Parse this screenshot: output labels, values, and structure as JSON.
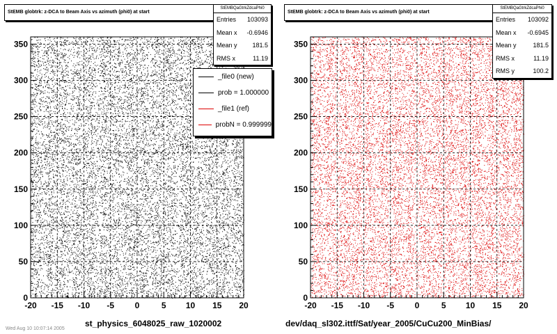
{
  "colors": {
    "new": "#000000",
    "ref": "#dd0000"
  },
  "panels": [
    {
      "title": "StEMB globtrk: z-DCA to Beam Axis vs azimuth (phi0) at start",
      "stats_name": "StEMBQaGtrkZdcaPhi0",
      "stats": [
        {
          "label": "Entries",
          "value": "103093"
        },
        {
          "label": "Mean x",
          "value": "-0.6946"
        },
        {
          "label": "Mean y",
          "value": "181.5"
        },
        {
          "label": "RMS x",
          "value": "11.19"
        }
      ],
      "x_title": "st_physics_6048025_raw_1020002"
    },
    {
      "title": "StEMB globtrk: z-DCA to Beam Axis vs azimuth (phi0) at start",
      "stats_name": "StEMBQaGtrkZdcaPhi0",
      "stats": [
        {
          "label": "Entries",
          "value": "103092"
        },
        {
          "label": "Mean x",
          "value": "-0.6945"
        },
        {
          "label": "Mean y",
          "value": "181.5"
        },
        {
          "label": "RMS x",
          "value": "11.19"
        },
        {
          "label": "RMS y",
          "value": "100.2"
        }
      ],
      "x_title": "dev/daq_sl302.ittf/Sat/year_2005/CuCu200_MinBias/"
    }
  ],
  "legend": [
    {
      "label": "_file0 (new)",
      "color": "#000000"
    },
    {
      "label": "prob = 1.000000",
      "color": "#000000"
    },
    {
      "label": "_file1 (ref)",
      "color": "#dd0000"
    },
    {
      "label": "probN = 0.999999",
      "color": "#dd0000"
    }
  ],
  "footer": "Wed Aug 10 10:07:14 2005",
  "chart_data": [
    {
      "type": "scatter",
      "title": "StEMB globtrk: z-DCA to Beam Axis vs azimuth (phi0) at start",
      "xlabel": "st_physics_6048025_raw_1020002",
      "ylabel": "",
      "xlim": [
        -20,
        20
      ],
      "ylim": [
        0,
        360
      ],
      "x_ticks": [
        -20,
        -15,
        -10,
        -5,
        0,
        5,
        10,
        15,
        20
      ],
      "y_ticks": [
        0,
        50,
        100,
        150,
        200,
        250,
        300,
        350
      ],
      "grid": true,
      "series": [
        {
          "name": "_file0 (new)",
          "color": "#000000",
          "entries": 103093,
          "mean_x": -0.6946,
          "mean_y": 181.5,
          "rms_x": 11.19
        }
      ]
    },
    {
      "type": "scatter",
      "title": "StEMB globtrk: z-DCA to Beam Axis vs azimuth (phi0) at start",
      "xlabel": "dev/daq_sl302.ittf/Sat/year_2005/CuCu200_MinBias/",
      "ylabel": "",
      "xlim": [
        -20,
        20
      ],
      "ylim": [
        0,
        360
      ],
      "x_ticks": [
        -20,
        -15,
        -10,
        -5,
        0,
        5,
        10,
        15,
        20
      ],
      "y_ticks": [
        0,
        50,
        100,
        150,
        200,
        250,
        300,
        350
      ],
      "grid": true,
      "series": [
        {
          "name": "_file1 (ref)",
          "color": "#dd0000",
          "entries": 103092,
          "mean_x": -0.6945,
          "mean_y": 181.5,
          "rms_x": 11.19,
          "rms_y": 100.2
        }
      ]
    }
  ]
}
